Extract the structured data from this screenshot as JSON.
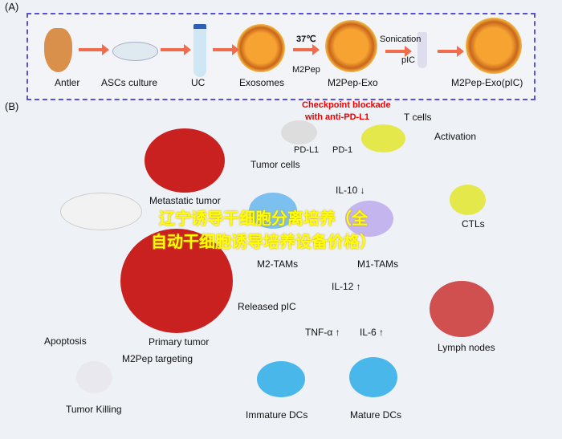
{
  "panel_a": {
    "label": "(A)",
    "steps": [
      "Antler",
      "ASCs culture",
      "UC",
      "Exosomes",
      "M2Pep-Exo",
      "M2Pep-Exo(pIC)"
    ],
    "temp": "37℃",
    "peptide": "M2Pep",
    "sonication": "Sonication",
    "pic": "pIC"
  },
  "panel_b": {
    "label": "(B)",
    "checkpoint": "Checkpoint blockade",
    "checkpoint2": "with anti-PD-L1",
    "t_cells": "T cells",
    "pdl1": "PD-L1",
    "pd1": "PD-1",
    "tumor_cells": "Tumor cells",
    "activation": "Activation",
    "metastatic": "Metastatic tumor",
    "il10": "IL-10 ↓",
    "m2tams": "M2-TAMs",
    "m1tams": "M1-TAMs",
    "ctls": "CTLs",
    "il12": "IL-12 ↑",
    "released": "Released pIC",
    "tnf": "TNF-α ↑",
    "il6": "IL-6 ↑",
    "lymph": "Lymph nodes",
    "primary": "Primary tumor",
    "apoptosis": "Apoptosis",
    "targeting": "M2Pep targeting",
    "killing": "Tumor Killing",
    "immature": "Immature DCs",
    "mature": "Mature DCs"
  },
  "watermark": {
    "line1": "辽宁诱导干细胞分离培养（全",
    "line2": "自动干细胞诱导培养设备价格）"
  },
  "colors": {
    "border": "#5a4fd8",
    "arrow": "#f26b4b",
    "red": "#e00000",
    "watermark": "#ffff00"
  }
}
